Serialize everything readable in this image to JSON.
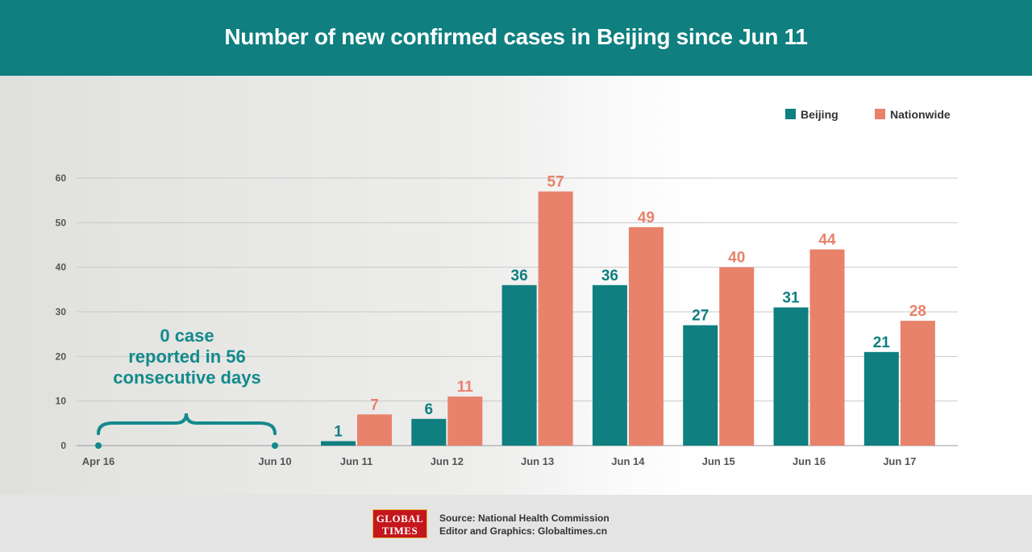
{
  "header": {
    "title": "Number of new confirmed cases in Beijing since Jun 11"
  },
  "note": {
    "line1": "0 case",
    "line2": "reported in 56",
    "line3": "consecutive days"
  },
  "footer": {
    "logo_line1": "GLOBAL",
    "logo_line2": "TIMES",
    "source": "Source: National Health Commission",
    "editor": "Editor and Graphics: Globaltimes.cn"
  },
  "colors": {
    "beijing": "#0f7f80",
    "nationwide": "#e8826b",
    "header": "#0f7f80"
  },
  "chart_data": {
    "type": "bar",
    "title": "Number of new confirmed cases in Beijing since Jun 11",
    "ylim": [
      0,
      60
    ],
    "yticks": [
      0,
      10,
      20,
      30,
      40,
      50,
      60
    ],
    "grid": true,
    "legend_position": "top-right",
    "period_labels": [
      "Apr 16",
      "Jun 10"
    ],
    "categories": [
      "Jun 11",
      "Jun 12",
      "Jun 13",
      "Jun 14",
      "Jun 15",
      "Jun 16",
      "Jun 17"
    ],
    "series": [
      {
        "name": "Beijing",
        "color": "#0f7f80",
        "values": [
          1,
          6,
          36,
          36,
          27,
          31,
          21
        ]
      },
      {
        "name": "Nationwide",
        "color": "#e8826b",
        "values": [
          7,
          11,
          57,
          49,
          40,
          44,
          28
        ]
      }
    ]
  }
}
